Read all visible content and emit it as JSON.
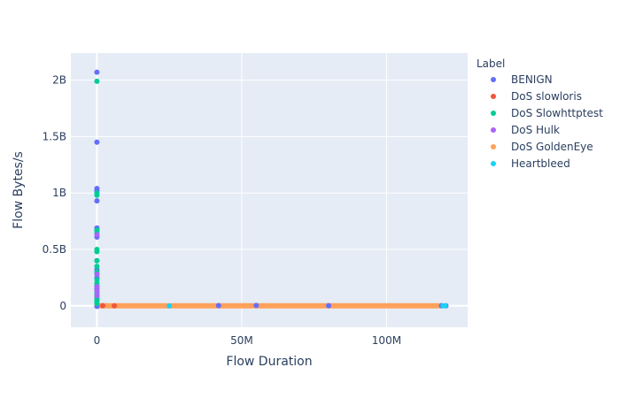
{
  "chart_data": {
    "type": "scatter",
    "xlabel": "Flow Duration",
    "ylabel": "Flow Bytes/s",
    "xlim": [
      -9000000,
      128000000
    ],
    "ylim": [
      -190000000,
      2240000000
    ],
    "x_ticks": [
      {
        "value": 0,
        "label": "0"
      },
      {
        "value": 50000000,
        "label": "50M"
      },
      {
        "value": 100000000,
        "label": "100M"
      }
    ],
    "y_ticks": [
      {
        "value": 0,
        "label": "0"
      },
      {
        "value": 500000000,
        "label": "0.5B"
      },
      {
        "value": 1000000000,
        "label": "1B"
      },
      {
        "value": 1500000000,
        "label": "1.5B"
      },
      {
        "value": 2000000000,
        "label": "2B"
      }
    ],
    "grid": true,
    "legend": {
      "title": "Label",
      "position": "right"
    },
    "colors": {
      "plot_bg": "#E5ECF6",
      "grid": "#ffffff",
      "text": "#2a3f5f"
    },
    "series": [
      {
        "name": "BENIGN",
        "color": "#636EFA",
        "points": [
          [
            0,
            2070000000
          ],
          [
            0,
            1450000000
          ],
          [
            0,
            1040000000
          ],
          [
            0,
            1020000000
          ],
          [
            0,
            930000000
          ],
          [
            0,
            690000000
          ],
          [
            0,
            670000000
          ],
          [
            0,
            610000000
          ],
          [
            0,
            400000000
          ],
          [
            0,
            320000000
          ],
          [
            0,
            250000000
          ],
          [
            0,
            150000000
          ],
          [
            0,
            60000000
          ],
          [
            0,
            -5000000
          ],
          [
            42000000,
            2000000
          ],
          [
            55000000,
            3000000
          ],
          [
            80000000,
            1000000
          ],
          [
            119000000,
            1000000
          ],
          [
            120500000,
            0
          ]
        ],
        "bands": []
      },
      {
        "name": "DoS slowloris",
        "color": "#EF553B",
        "points": [
          [
            2000000,
            1000000
          ],
          [
            6000000,
            500000
          ]
        ],
        "bands": []
      },
      {
        "name": "DoS Slowhttptest",
        "color": "#00CC96",
        "points": [
          [
            0,
            1990000000
          ],
          [
            0,
            1000000000
          ],
          [
            0,
            980000000
          ],
          [
            0,
            670000000
          ],
          [
            0,
            650000000
          ],
          [
            0,
            500000000
          ],
          [
            0,
            480000000
          ],
          [
            0,
            400000000
          ],
          [
            0,
            350000000
          ],
          [
            0,
            300000000
          ],
          [
            0,
            280000000
          ],
          [
            0,
            230000000
          ],
          [
            0,
            200000000
          ],
          [
            0,
            180000000
          ],
          [
            0,
            120000000
          ],
          [
            0,
            100000000
          ],
          [
            0,
            80000000
          ],
          [
            0,
            60000000
          ],
          [
            0,
            40000000
          ],
          [
            0,
            20000000
          ]
        ],
        "bands": []
      },
      {
        "name": "DoS Hulk",
        "color": "#AB63FA",
        "points": [
          [
            0,
            630000000
          ],
          [
            0,
            280000000
          ],
          [
            0,
            170000000
          ],
          [
            0,
            130000000
          ],
          [
            0,
            90000000
          ]
        ],
        "bands": []
      },
      {
        "name": "DoS GoldenEye",
        "color": "#FFA15A",
        "points": [],
        "bands": [
          [
            0,
            119000000,
            0
          ]
        ]
      },
      {
        "name": "Heartbleed",
        "color": "#19D3F3",
        "points": [
          [
            25000000,
            -1000000
          ],
          [
            119500000,
            0
          ],
          [
            120200000,
            0
          ]
        ],
        "bands": []
      }
    ]
  }
}
